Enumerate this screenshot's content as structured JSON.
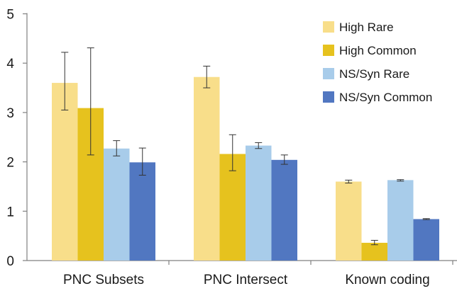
{
  "chart_data": {
    "type": "bar",
    "categories": [
      "PNC Subsets",
      "PNC Intersect",
      "Known coding"
    ],
    "series": [
      {
        "name": "High Rare",
        "color": "#F8DE8A",
        "values": [
          3.6,
          3.72,
          1.6
        ],
        "error_low": [
          3.05,
          3.5,
          1.57
        ],
        "error_high": [
          4.22,
          3.94,
          1.63
        ]
      },
      {
        "name": "High Common",
        "color": "#E6C21E",
        "values": [
          3.09,
          2.16,
          0.36
        ],
        "error_low": [
          2.14,
          1.82,
          0.32
        ],
        "error_high": [
          4.31,
          2.55,
          0.41
        ]
      },
      {
        "name": "NS/Syn Rare",
        "color": "#A8CCEA",
        "values": [
          2.27,
          2.33,
          1.63
        ],
        "error_low": [
          2.12,
          2.27,
          1.61
        ],
        "error_high": [
          2.43,
          2.39,
          1.64
        ]
      },
      {
        "name": "NS/Syn Common",
        "color": "#5177C1",
        "values": [
          1.99,
          2.04,
          0.84
        ],
        "error_low": [
          1.73,
          1.95,
          0.83
        ],
        "error_high": [
          2.28,
          2.14,
          0.85
        ]
      }
    ],
    "title": "",
    "xlabel": "",
    "ylabel": "",
    "ylim": [
      0,
      5
    ],
    "yticks": [
      "0",
      "1",
      "2",
      "3",
      "4",
      "5"
    ],
    "grid": false,
    "legend_position": "top-right",
    "axis_color": "#808080",
    "errorbar_color": "#333333"
  }
}
